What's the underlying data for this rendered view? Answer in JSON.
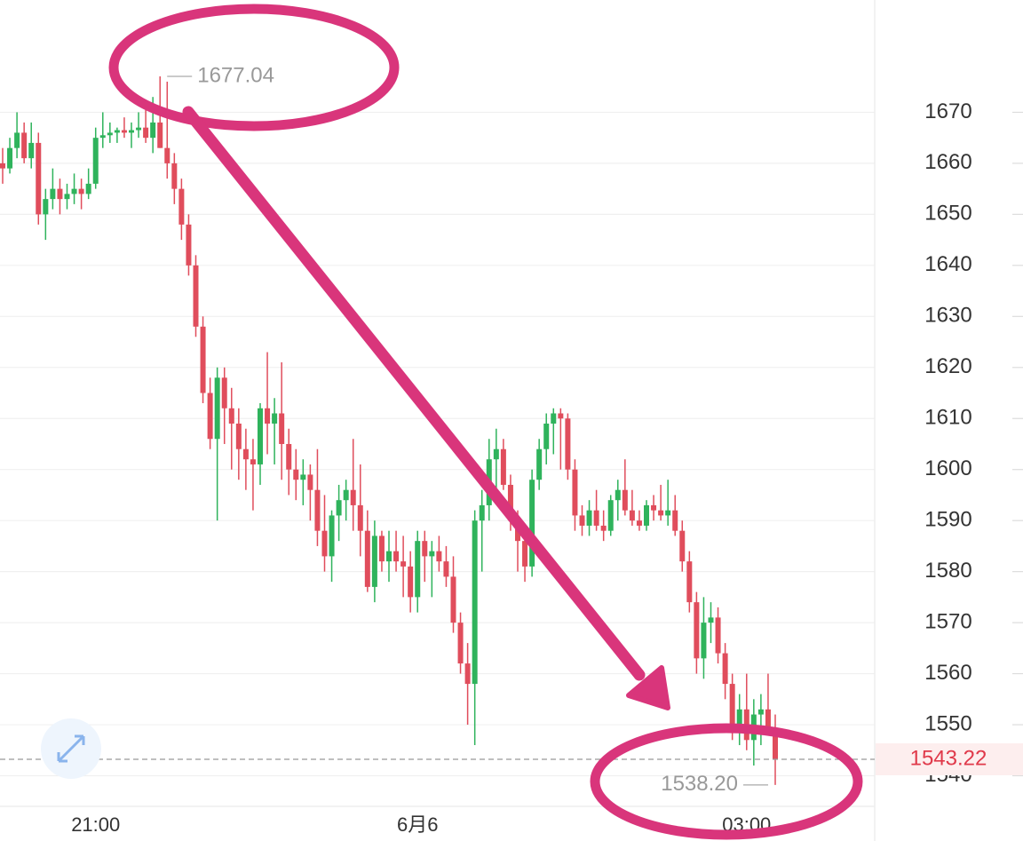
{
  "chart_data": {
    "type": "candlestick",
    "categories": [
      null,
      null,
      null,
      null,
      null,
      null,
      null,
      null,
      null,
      null,
      null,
      null,
      null,
      "21:00",
      null,
      null,
      null,
      null,
      null,
      null,
      null,
      null,
      null,
      null,
      null,
      null,
      null,
      null,
      null,
      null,
      null,
      null,
      null,
      null,
      null,
      null,
      null,
      null,
      null,
      null,
      null,
      null,
      null,
      null,
      null,
      null,
      null,
      null,
      null,
      null,
      null,
      null,
      null,
      null,
      null,
      null,
      null,
      null,
      "6月6",
      null,
      null,
      null,
      null,
      null,
      null,
      null,
      null,
      null,
      null,
      null,
      null,
      null,
      null,
      null,
      null,
      null,
      null,
      null,
      null,
      null,
      null,
      null,
      null,
      null,
      null,
      null,
      null,
      null,
      null,
      null,
      null,
      null,
      null,
      null,
      null,
      null,
      null,
      null,
      null,
      null,
      null,
      null,
      null,
      null,
      "03:00",
      null,
      null,
      null,
      null
    ],
    "candles": [
      [
        1660,
        1663,
        1656,
        1659
      ],
      [
        1659,
        1665,
        1658,
        1663
      ],
      [
        1663,
        1670,
        1661,
        1666
      ],
      [
        1666,
        1668,
        1660,
        1661
      ],
      [
        1661,
        1668,
        1659,
        1664
      ],
      [
        1664,
        1666,
        1648,
        1650
      ],
      [
        1650,
        1655,
        1645,
        1653
      ],
      [
        1653,
        1659,
        1651,
        1655
      ],
      [
        1655,
        1657,
        1650,
        1653
      ],
      [
        1653,
        1656,
        1651,
        1654
      ],
      [
        1654,
        1658,
        1652,
        1655
      ],
      [
        1655,
        1657,
        1651,
        1654
      ],
      [
        1654,
        1659,
        1653,
        1656
      ],
      [
        1656,
        1667,
        1655,
        1665
      ],
      [
        1665,
        1670,
        1663,
        1665.5
      ],
      [
        1665.5,
        1668,
        1664,
        1666
      ],
      [
        1666,
        1667,
        1664,
        1666.5
      ],
      [
        1666.5,
        1669,
        1665,
        1666
      ],
      [
        1666,
        1668,
        1663,
        1666.5
      ],
      [
        1666.5,
        1670,
        1665,
        1667
      ],
      [
        1667,
        1671,
        1664,
        1665
      ],
      [
        1665,
        1673,
        1662,
        1668
      ],
      [
        1668,
        1677.04,
        1663,
        1663
      ],
      [
        1663,
        1676,
        1657,
        1660
      ],
      [
        1660,
        1662,
        1652,
        1655
      ],
      [
        1655,
        1657,
        1645,
        1648
      ],
      [
        1648,
        1650,
        1638,
        1640
      ],
      [
        1640,
        1642,
        1626,
        1628
      ],
      [
        1628,
        1630,
        1613,
        1615
      ],
      [
        1615,
        1618,
        1604,
        1606
      ],
      [
        1606,
        1620,
        1590,
        1618
      ],
      [
        1618,
        1620,
        1605,
        1612
      ],
      [
        1612,
        1616,
        1600,
        1609
      ],
      [
        1609,
        1612,
        1598,
        1604
      ],
      [
        1604,
        1608,
        1596,
        1602
      ],
      [
        1602,
        1606,
        1592,
        1601
      ],
      [
        1601,
        1613,
        1597,
        1612
      ],
      [
        1612,
        1623,
        1603,
        1609
      ],
      [
        1609,
        1614,
        1601,
        1611
      ],
      [
        1611,
        1621,
        1598,
        1605
      ],
      [
        1605,
        1608,
        1595,
        1600
      ],
      [
        1600,
        1604,
        1594,
        1598
      ],
      [
        1598,
        1602,
        1593,
        1599
      ],
      [
        1599,
        1601,
        1590,
        1596
      ],
      [
        1596,
        1604,
        1585,
        1588
      ],
      [
        1588,
        1595,
        1580,
        1583
      ],
      [
        1583,
        1592,
        1578,
        1591
      ],
      [
        1591,
        1597,
        1586,
        1594
      ],
      [
        1594,
        1598,
        1590,
        1596
      ],
      [
        1596,
        1606,
        1588,
        1593
      ],
      [
        1593,
        1601,
        1583,
        1588
      ],
      [
        1588,
        1592,
        1576,
        1577
      ],
      [
        1577,
        1590,
        1574,
        1587
      ],
      [
        1587,
        1588,
        1580,
        1582
      ],
      [
        1582,
        1588,
        1578,
        1584
      ],
      [
        1584,
        1588,
        1580,
        1582
      ],
      [
        1582,
        1587,
        1575,
        1581
      ],
      [
        1581,
        1584,
        1572,
        1575
      ],
      [
        1575,
        1588,
        1572,
        1586
      ],
      [
        1586,
        1588,
        1578,
        1583
      ],
      [
        1583,
        1586,
        1575,
        1584
      ],
      [
        1584,
        1587,
        1580,
        1582
      ],
      [
        1582,
        1585,
        1577,
        1579
      ],
      [
        1579,
        1583,
        1568,
        1570
      ],
      [
        1570,
        1572,
        1560,
        1562
      ],
      [
        1562,
        1566,
        1550,
        1558
      ],
      [
        1558,
        1592,
        1546,
        1590
      ],
      [
        1590,
        1596,
        1580,
        1593
      ],
      [
        1593,
        1606,
        1590,
        1602
      ],
      [
        1602,
        1608,
        1594,
        1604
      ],
      [
        1604,
        1606,
        1596,
        1597
      ],
      [
        1597,
        1599,
        1588,
        1590
      ],
      [
        1590,
        1592,
        1580,
        1586
      ],
      [
        1586,
        1588,
        1578,
        1581
      ],
      [
        1581,
        1600,
        1579,
        1598
      ],
      [
        1598,
        1606,
        1596,
        1604
      ],
      [
        1604,
        1611,
        1601,
        1609
      ],
      [
        1609,
        1612,
        1603,
        1611
      ],
      [
        1611,
        1612,
        1600,
        1610
      ],
      [
        1610,
        1611,
        1598,
        1600
      ],
      [
        1600,
        1602,
        1588,
        1591
      ],
      [
        1591,
        1593,
        1587,
        1589
      ],
      [
        1589,
        1594,
        1587,
        1592
      ],
      [
        1592,
        1596,
        1588,
        1589
      ],
      [
        1589,
        1592,
        1586,
        1588
      ],
      [
        1588,
        1595,
        1587,
        1594
      ],
      [
        1594,
        1598,
        1590,
        1596
      ],
      [
        1596,
        1602,
        1591,
        1592
      ],
      [
        1592,
        1596,
        1589,
        1590
      ],
      [
        1590,
        1592,
        1588,
        1589
      ],
      [
        1589,
        1594,
        1588,
        1593
      ],
      [
        1593,
        1595,
        1590,
        1592
      ],
      [
        1592,
        1597,
        1590,
        1591
      ],
      [
        1591,
        1598,
        1589,
        1592
      ],
      [
        1592,
        1595,
        1587,
        1588
      ],
      [
        1588,
        1590,
        1580,
        1582
      ],
      [
        1582,
        1584,
        1572,
        1574
      ],
      [
        1574,
        1576,
        1560,
        1563
      ],
      [
        1563,
        1575,
        1559,
        1570
      ],
      [
        1570,
        1574,
        1566,
        1571
      ],
      [
        1571,
        1573,
        1562,
        1564
      ],
      [
        1564,
        1566,
        1555,
        1558
      ],
      [
        1558,
        1560,
        1547,
        1550
      ],
      [
        1550,
        1556,
        1546,
        1553
      ],
      [
        1553,
        1560,
        1545,
        1547
      ],
      [
        1547,
        1555,
        1542,
        1552
      ],
      [
        1552,
        1556,
        1546,
        1553
      ],
      [
        1553,
        1560,
        1548,
        1549
      ],
      [
        1549,
        1552,
        1538.2,
        1543.22
      ]
    ],
    "up_color": "#2fb35c",
    "down_color": "#e04d5c",
    "ylim": [
      1534,
      1692
    ],
    "yticks": [
      1540,
      1550,
      1560,
      1570,
      1580,
      1590,
      1600,
      1610,
      1620,
      1630,
      1640,
      1650,
      1660,
      1670
    ],
    "grid": true,
    "max_label": 1677.04,
    "min_label": {
      "value": 1538.2,
      "label": "1538.20"
    },
    "last_price": 1543.22
  }
}
